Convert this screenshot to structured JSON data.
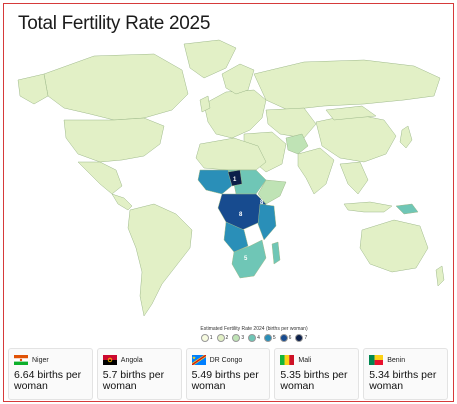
{
  "title": "Total Fertility Rate 2025",
  "map": {
    "ocean_color": "#ffffff",
    "land_color": "#e2f0c6",
    "border_color": "#9db88a",
    "highlight_labels": [
      "1",
      "8",
      "8",
      "5"
    ]
  },
  "legend": {
    "title": "Estimated Fertility Rate 2024 (births per woman)",
    "items": [
      {
        "label": "1",
        "color": "#f7fbe0"
      },
      {
        "label": "2",
        "color": "#e2f0c6"
      },
      {
        "label": "3",
        "color": "#bfe3b5"
      },
      {
        "label": "4",
        "color": "#6fc6b6"
      },
      {
        "label": "5",
        "color": "#2a8fb8"
      },
      {
        "label": "6",
        "color": "#174b8f"
      },
      {
        "label": "7",
        "color": "#0b1f4a"
      }
    ]
  },
  "cards": [
    {
      "country": "Niger",
      "value": "6.64 births per woman",
      "flag_icon": "niger-flag-icon"
    },
    {
      "country": "Angola",
      "value": "5.7 births per woman",
      "flag_icon": "angola-flag-icon"
    },
    {
      "country": "DR Congo",
      "value": "5.49 births per woman",
      "flag_icon": "dr-congo-flag-icon"
    },
    {
      "country": "Mali",
      "value": "5.35 births per woman",
      "flag_icon": "mali-flag-icon"
    },
    {
      "country": "Benin",
      "value": "5.34 births per woman",
      "flag_icon": "benin-flag-icon"
    }
  ]
}
